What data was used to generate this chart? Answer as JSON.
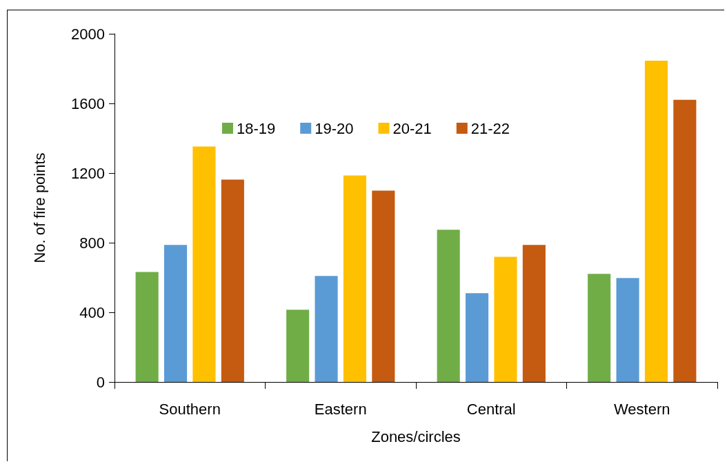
{
  "chart_data": {
    "type": "bar",
    "xlabel": "Zones/circles",
    "ylabel": "No. of fire points",
    "categories": [
      "Southern",
      "Eastern",
      "Central",
      "Western"
    ],
    "series": [
      {
        "name": "18-19",
        "color": "#70ad47",
        "values": [
          632,
          415,
          874,
          621
        ]
      },
      {
        "name": "19-20",
        "color": "#5b9bd5",
        "values": [
          787,
          609,
          510,
          597
        ]
      },
      {
        "name": "20-21",
        "color": "#ffc000",
        "values": [
          1352,
          1186,
          719,
          1846
        ]
      },
      {
        "name": "21-22",
        "color": "#c55a11",
        "values": [
          1162,
          1099,
          787,
          1621
        ]
      }
    ],
    "ylim": [
      0,
      2000
    ],
    "yticks": [
      0,
      400,
      800,
      1200,
      1600,
      2000
    ],
    "grid": false,
    "legend": "top"
  }
}
